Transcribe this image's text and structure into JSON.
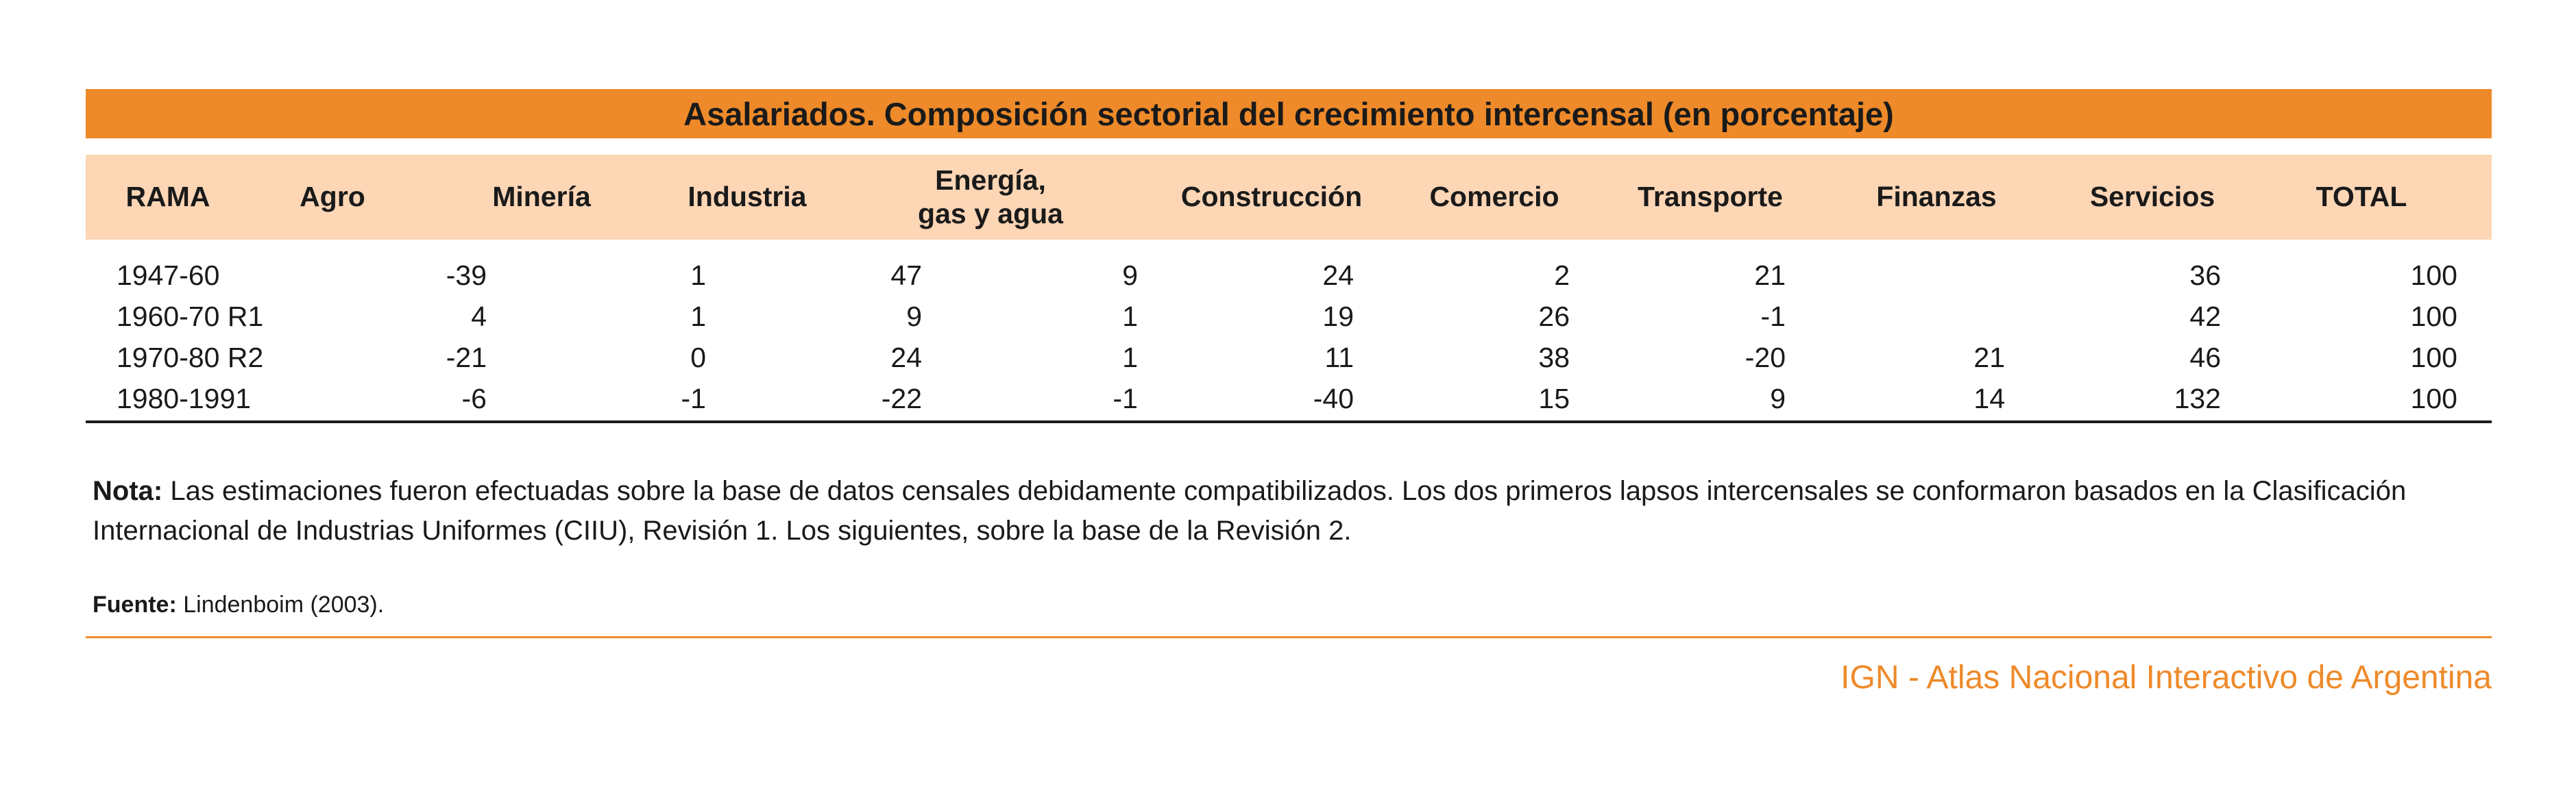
{
  "table": {
    "title": "Asalariados. Composición sectorial del crecimiento intercensal (en porcentaje)",
    "columns": [
      "RAMA",
      "Agro",
      "Minería",
      "Industria",
      "Energía,\ngas y agua",
      "Construcción",
      "Comercio",
      "Transporte",
      "Finanzas",
      "Servicios",
      "TOTAL"
    ],
    "rows": [
      [
        "1947-60",
        "-39",
        "1",
        "47",
        "9",
        "24",
        "2",
        "21",
        "",
        "36",
        "100"
      ],
      [
        "1960-70 R1",
        "4",
        "1",
        "9",
        "1",
        "19",
        "26",
        "-1",
        "",
        "42",
        "100"
      ],
      [
        "1970-80 R2",
        "-21",
        "0",
        "24",
        "1",
        "11",
        "38",
        "-20",
        "21",
        "46",
        "100"
      ],
      [
        "1980-1991",
        "-6",
        "-1",
        "-22",
        "-1",
        "-40",
        "15",
        "9",
        "14",
        "132",
        "100"
      ]
    ]
  },
  "note": {
    "label": "Nota:",
    "text": " Las estimaciones fueron efectuadas sobre la base de datos censales debidamente compatibilizados. Los dos primeros lapsos intercensales se conformaron basados en la Clasificación Internacional de Industrias Uniformes (CIIU), Revisión 1. Los siguientes, sobre la base de la Revisión 2."
  },
  "source": {
    "label": "Fuente:",
    "text": " Lindenboim (2003)."
  },
  "brand": "IGN - Atlas Nacional Interactivo de Argentina",
  "colors": {
    "accent_orange": "#ee8a2a",
    "header_peach": "#fdd6b6"
  }
}
